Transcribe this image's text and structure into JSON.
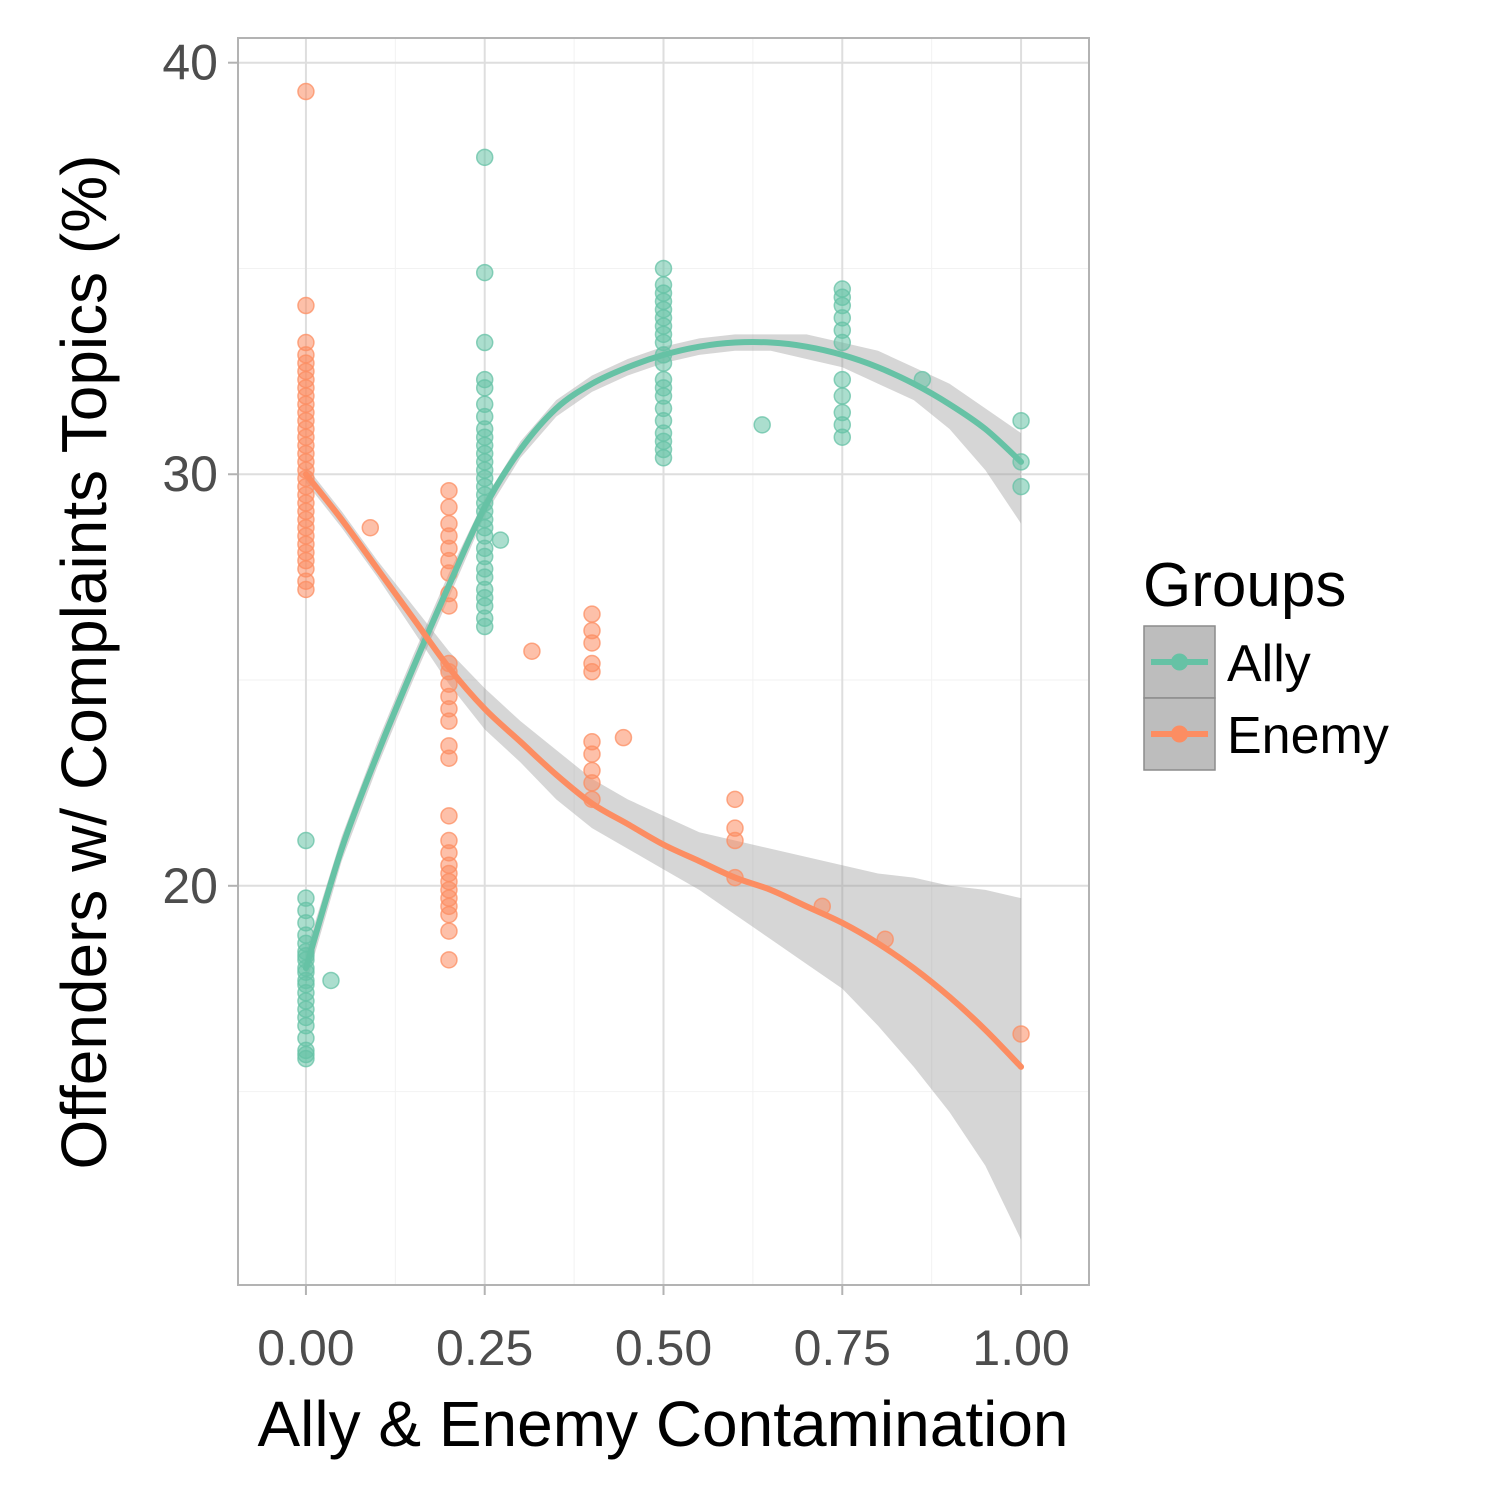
{
  "chart_data": {
    "type": "scatter",
    "xlabel": "Ally & Enemy Contamination",
    "ylabel": "Offenders w/ Complaints Topics (%)",
    "xlim": [
      -0.095,
      1.095
    ],
    "ylim": [
      10.3,
      40.6
    ],
    "x_ticks": [
      {
        "value": 0,
        "label": "0.00"
      },
      {
        "value": 0.25,
        "label": "0.25"
      },
      {
        "value": 0.5,
        "label": "0.50"
      },
      {
        "value": 0.75,
        "label": "0.75"
      },
      {
        "value": 1,
        "label": "1.00"
      }
    ],
    "y_ticks": [
      {
        "value": 20,
        "label": "20"
      },
      {
        "value": 30,
        "label": "30"
      },
      {
        "value": 40,
        "label": "40"
      }
    ],
    "grid": true,
    "legend": {
      "title": "Groups",
      "position": "right",
      "entries": [
        "Ally",
        "Enemy"
      ]
    },
    "series": [
      {
        "name": "Ally",
        "color": "#66c2a5",
        "points": [
          [
            0,
            21.1
          ],
          [
            0,
            19.7
          ],
          [
            0,
            19.4
          ],
          [
            0,
            19.1
          ],
          [
            0,
            18.8
          ],
          [
            0,
            18.6
          ],
          [
            0,
            18.4
          ],
          [
            0,
            18.3
          ],
          [
            0,
            18.2
          ],
          [
            0,
            18.0
          ],
          [
            0,
            17.9
          ],
          [
            0,
            17.7
          ],
          [
            0,
            17.6
          ],
          [
            0,
            17.4
          ],
          [
            0,
            17.2
          ],
          [
            0,
            17.0
          ],
          [
            0,
            16.8
          ],
          [
            0,
            16.6
          ],
          [
            0,
            16.3
          ],
          [
            0,
            16.0
          ],
          [
            0,
            15.9
          ],
          [
            0,
            15.8
          ],
          [
            0.035,
            17.7
          ],
          [
            0.25,
            37.7
          ],
          [
            0.25,
            34.9
          ],
          [
            0.25,
            33.2
          ],
          [
            0.25,
            32.3
          ],
          [
            0.25,
            32.1
          ],
          [
            0.25,
            31.7
          ],
          [
            0.25,
            31.4
          ],
          [
            0.25,
            31.1
          ],
          [
            0.25,
            30.9
          ],
          [
            0.25,
            30.7
          ],
          [
            0.25,
            30.5
          ],
          [
            0.25,
            30.3
          ],
          [
            0.25,
            30.1
          ],
          [
            0.25,
            29.9
          ],
          [
            0.25,
            29.7
          ],
          [
            0.25,
            29.5
          ],
          [
            0.25,
            29.3
          ],
          [
            0.25,
            29.1
          ],
          [
            0.25,
            28.9
          ],
          [
            0.25,
            28.7
          ],
          [
            0.25,
            28.5
          ],
          [
            0.25,
            28.2
          ],
          [
            0.25,
            28.0
          ],
          [
            0.25,
            27.7
          ],
          [
            0.25,
            27.5
          ],
          [
            0.25,
            27.2
          ],
          [
            0.25,
            27.0
          ],
          [
            0.25,
            26.8
          ],
          [
            0.25,
            26.5
          ],
          [
            0.25,
            26.3
          ],
          [
            0.272,
            28.4
          ],
          [
            0.5,
            35.0
          ],
          [
            0.5,
            34.6
          ],
          [
            0.5,
            34.4
          ],
          [
            0.5,
            34.2
          ],
          [
            0.5,
            34.0
          ],
          [
            0.5,
            33.8
          ],
          [
            0.5,
            33.6
          ],
          [
            0.5,
            33.4
          ],
          [
            0.5,
            33.2
          ],
          [
            0.5,
            32.9
          ],
          [
            0.5,
            32.7
          ],
          [
            0.5,
            32.3
          ],
          [
            0.5,
            32.1
          ],
          [
            0.5,
            31.9
          ],
          [
            0.5,
            31.6
          ],
          [
            0.5,
            31.3
          ],
          [
            0.5,
            31.0
          ],
          [
            0.5,
            30.8
          ],
          [
            0.5,
            30.6
          ],
          [
            0.5,
            30.4
          ],
          [
            0.638,
            31.2
          ],
          [
            0.75,
            34.5
          ],
          [
            0.75,
            34.3
          ],
          [
            0.75,
            34.1
          ],
          [
            0.75,
            33.8
          ],
          [
            0.75,
            33.5
          ],
          [
            0.75,
            33.2
          ],
          [
            0.75,
            32.3
          ],
          [
            0.75,
            31.9
          ],
          [
            0.75,
            31.5
          ],
          [
            0.75,
            31.2
          ],
          [
            0.75,
            30.9
          ],
          [
            0.862,
            32.3
          ],
          [
            1,
            31.3
          ],
          [
            1,
            30.3
          ],
          [
            1,
            29.7
          ]
        ],
        "smooth": [
          [
            0,
            18.0
          ],
          [
            0.05,
            20.9
          ],
          [
            0.1,
            23.2
          ],
          [
            0.15,
            25.3
          ],
          [
            0.2,
            27.3
          ],
          [
            0.25,
            29.2
          ],
          [
            0.3,
            30.6
          ],
          [
            0.35,
            31.6
          ],
          [
            0.4,
            32.2
          ],
          [
            0.45,
            32.6
          ],
          [
            0.5,
            32.9
          ],
          [
            0.55,
            33.1
          ],
          [
            0.6,
            33.2
          ],
          [
            0.65,
            33.2
          ],
          [
            0.7,
            33.1
          ],
          [
            0.75,
            32.9
          ],
          [
            0.8,
            32.6
          ],
          [
            0.85,
            32.2
          ],
          [
            0.9,
            31.7
          ],
          [
            0.95,
            31.1
          ],
          [
            1,
            30.3
          ]
        ],
        "ci_upper": [
          [
            0,
            18.4
          ],
          [
            0.05,
            21.2
          ],
          [
            0.1,
            23.5
          ],
          [
            0.15,
            25.6
          ],
          [
            0.2,
            27.6
          ],
          [
            0.25,
            29.4
          ],
          [
            0.3,
            30.8
          ],
          [
            0.35,
            31.8
          ],
          [
            0.4,
            32.4
          ],
          [
            0.45,
            32.8
          ],
          [
            0.5,
            33.1
          ],
          [
            0.55,
            33.3
          ],
          [
            0.6,
            33.4
          ],
          [
            0.65,
            33.4
          ],
          [
            0.7,
            33.4
          ],
          [
            0.75,
            33.2
          ],
          [
            0.8,
            33.0
          ],
          [
            0.85,
            32.6
          ],
          [
            0.9,
            32.2
          ],
          [
            0.95,
            31.6
          ],
          [
            1,
            31.0
          ]
        ],
        "ci_lower": [
          [
            0,
            17.6
          ],
          [
            0.05,
            20.6
          ],
          [
            0.1,
            22.9
          ],
          [
            0.15,
            25.0
          ],
          [
            0.2,
            27.0
          ],
          [
            0.25,
            29.0
          ],
          [
            0.3,
            30.4
          ],
          [
            0.35,
            31.4
          ],
          [
            0.4,
            32.0
          ],
          [
            0.45,
            32.4
          ],
          [
            0.5,
            32.7
          ],
          [
            0.55,
            32.9
          ],
          [
            0.6,
            33.0
          ],
          [
            0.65,
            33.0
          ],
          [
            0.7,
            32.8
          ],
          [
            0.75,
            32.6
          ],
          [
            0.8,
            32.2
          ],
          [
            0.85,
            31.8
          ],
          [
            0.9,
            31.1
          ],
          [
            0.95,
            30.1
          ],
          [
            1,
            28.8
          ]
        ]
      },
      {
        "name": "Enemy",
        "color": "#fc8d62",
        "points": [
          [
            0,
            39.3
          ],
          [
            0,
            34.1
          ],
          [
            0,
            33.2
          ],
          [
            0,
            32.9
          ],
          [
            0,
            32.7
          ],
          [
            0,
            32.5
          ],
          [
            0,
            32.3
          ],
          [
            0,
            32.1
          ],
          [
            0,
            31.9
          ],
          [
            0,
            31.7
          ],
          [
            0,
            31.5
          ],
          [
            0,
            31.3
          ],
          [
            0,
            31.1
          ],
          [
            0,
            30.9
          ],
          [
            0,
            30.7
          ],
          [
            0,
            30.5
          ],
          [
            0,
            30.3
          ],
          [
            0,
            30.1
          ],
          [
            0,
            29.9
          ],
          [
            0,
            29.7
          ],
          [
            0,
            29.5
          ],
          [
            0,
            29.3
          ],
          [
            0,
            29.1
          ],
          [
            0,
            28.9
          ],
          [
            0,
            28.7
          ],
          [
            0,
            28.5
          ],
          [
            0,
            28.3
          ],
          [
            0,
            28.1
          ],
          [
            0,
            27.9
          ],
          [
            0,
            27.7
          ],
          [
            0,
            27.4
          ],
          [
            0,
            27.2
          ],
          [
            0.09,
            28.7
          ],
          [
            0.2,
            29.6
          ],
          [
            0.2,
            29.2
          ],
          [
            0.2,
            28.8
          ],
          [
            0.2,
            28.5
          ],
          [
            0.2,
            28.2
          ],
          [
            0.2,
            27.9
          ],
          [
            0.2,
            27.6
          ],
          [
            0.2,
            27.1
          ],
          [
            0.2,
            26.8
          ],
          [
            0.2,
            25.4
          ],
          [
            0.2,
            25.2
          ],
          [
            0.2,
            24.9
          ],
          [
            0.2,
            24.6
          ],
          [
            0.2,
            24.3
          ],
          [
            0.2,
            24.0
          ],
          [
            0.2,
            23.4
          ],
          [
            0.2,
            23.1
          ],
          [
            0.2,
            21.7
          ],
          [
            0.2,
            21.1
          ],
          [
            0.2,
            20.8
          ],
          [
            0.2,
            20.5
          ],
          [
            0.2,
            20.3
          ],
          [
            0.2,
            20.1
          ],
          [
            0.2,
            19.9
          ],
          [
            0.2,
            19.7
          ],
          [
            0.2,
            19.5
          ],
          [
            0.2,
            19.3
          ],
          [
            0.2,
            18.9
          ],
          [
            0.2,
            18.2
          ],
          [
            0.316,
            25.7
          ],
          [
            0.4,
            26.6
          ],
          [
            0.4,
            26.2
          ],
          [
            0.4,
            25.9
          ],
          [
            0.4,
            25.4
          ],
          [
            0.4,
            25.2
          ],
          [
            0.4,
            23.5
          ],
          [
            0.4,
            23.2
          ],
          [
            0.4,
            22.8
          ],
          [
            0.4,
            22.5
          ],
          [
            0.4,
            22.1
          ],
          [
            0.444,
            23.6
          ],
          [
            0.6,
            22.1
          ],
          [
            0.6,
            21.4
          ],
          [
            0.6,
            21.1
          ],
          [
            0.6,
            20.2
          ],
          [
            0.722,
            19.5
          ],
          [
            0.81,
            18.7
          ],
          [
            1,
            16.4
          ]
        ],
        "smooth": [
          [
            0,
            30.0
          ],
          [
            0.05,
            28.9
          ],
          [
            0.1,
            27.7
          ],
          [
            0.15,
            26.5
          ],
          [
            0.2,
            25.3
          ],
          [
            0.25,
            24.3
          ],
          [
            0.3,
            23.5
          ],
          [
            0.35,
            22.7
          ],
          [
            0.4,
            22.0
          ],
          [
            0.45,
            21.5
          ],
          [
            0.5,
            21.0
          ],
          [
            0.55,
            20.6
          ],
          [
            0.6,
            20.2
          ],
          [
            0.65,
            19.9
          ],
          [
            0.7,
            19.5
          ],
          [
            0.75,
            19.1
          ],
          [
            0.8,
            18.6
          ],
          [
            0.85,
            18.0
          ],
          [
            0.9,
            17.3
          ],
          [
            0.95,
            16.5
          ],
          [
            1,
            15.6
          ]
        ],
        "ci_upper": [
          [
            0,
            30.2
          ],
          [
            0.05,
            29.1
          ],
          [
            0.1,
            27.9
          ],
          [
            0.15,
            26.8
          ],
          [
            0.2,
            25.7
          ],
          [
            0.25,
            24.8
          ],
          [
            0.3,
            24.0
          ],
          [
            0.35,
            23.3
          ],
          [
            0.4,
            22.6
          ],
          [
            0.45,
            22.1
          ],
          [
            0.5,
            21.7
          ],
          [
            0.55,
            21.3
          ],
          [
            0.6,
            21.1
          ],
          [
            0.65,
            20.9
          ],
          [
            0.7,
            20.7
          ],
          [
            0.75,
            20.5
          ],
          [
            0.8,
            20.3
          ],
          [
            0.85,
            20.2
          ],
          [
            0.9,
            20.0
          ],
          [
            0.95,
            19.9
          ],
          [
            1,
            19.7
          ]
        ],
        "ci_lower": [
          [
            0,
            29.8
          ],
          [
            0.05,
            28.7
          ],
          [
            0.1,
            27.5
          ],
          [
            0.15,
            26.2
          ],
          [
            0.2,
            24.9
          ],
          [
            0.25,
            23.8
          ],
          [
            0.3,
            23.0
          ],
          [
            0.35,
            22.1
          ],
          [
            0.4,
            21.4
          ],
          [
            0.45,
            20.9
          ],
          [
            0.5,
            20.4
          ],
          [
            0.55,
            19.9
          ],
          [
            0.6,
            19.3
          ],
          [
            0.65,
            18.7
          ],
          [
            0.7,
            18.1
          ],
          [
            0.75,
            17.5
          ],
          [
            0.8,
            16.6
          ],
          [
            0.85,
            15.6
          ],
          [
            0.9,
            14.5
          ],
          [
            0.95,
            13.2
          ],
          [
            1,
            11.4
          ]
        ]
      }
    ]
  }
}
